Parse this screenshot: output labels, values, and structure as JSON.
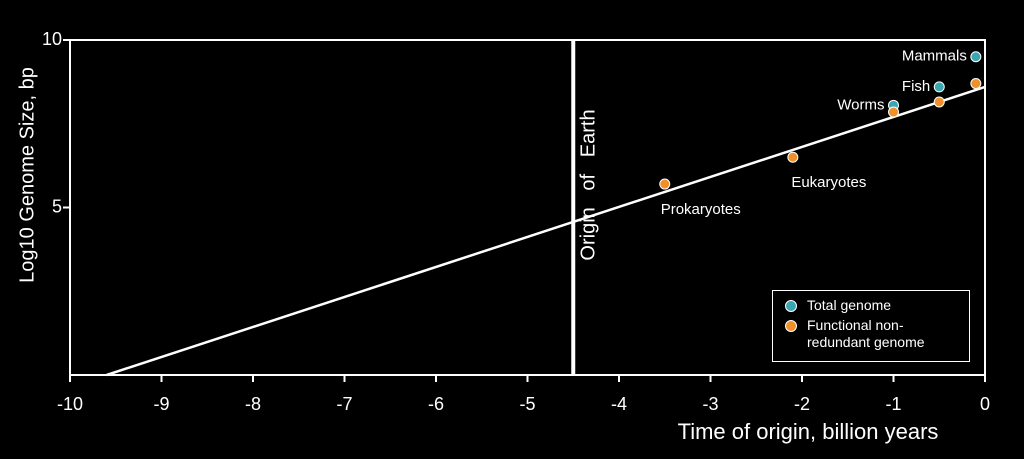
{
  "chart_data": {
    "type": "scatter",
    "xlabel": "Time of origin, billion years",
    "ylabel": "Log10 Genome Size, bp",
    "xlim": [
      -10,
      0
    ],
    "xticks": [
      -10,
      -9,
      -8,
      -7,
      -6,
      -5,
      -4,
      -3,
      -2,
      -1,
      0
    ],
    "ylim": [
      0,
      10
    ],
    "yticks": [
      5,
      10
    ],
    "series": [
      {
        "name": "Total genome",
        "color": "#3aa6b0",
        "x": [
          -0.1,
          -0.5,
          -1.0
        ],
        "values": [
          9.5,
          8.6,
          8.05
        ],
        "point_labels": [
          "Mammals",
          "Fish",
          "Worms"
        ]
      },
      {
        "name": "Functional non-redundant genome",
        "color": "#f0902a",
        "x": [
          -0.1,
          -0.5,
          -1.0,
          -2.1,
          -3.5
        ],
        "values": [
          8.7,
          8.15,
          7.85,
          6.5,
          5.7
        ],
        "point_labels": [
          null,
          null,
          null,
          "Eukaryotes",
          "Prokaryotes"
        ]
      }
    ],
    "trend_line": {
      "x": [
        -9.6,
        0
      ],
      "y": [
        0,
        8.6
      ]
    },
    "vline": {
      "x": -4.5,
      "label": "Origin   of   Earth"
    },
    "legend": "lower right"
  }
}
